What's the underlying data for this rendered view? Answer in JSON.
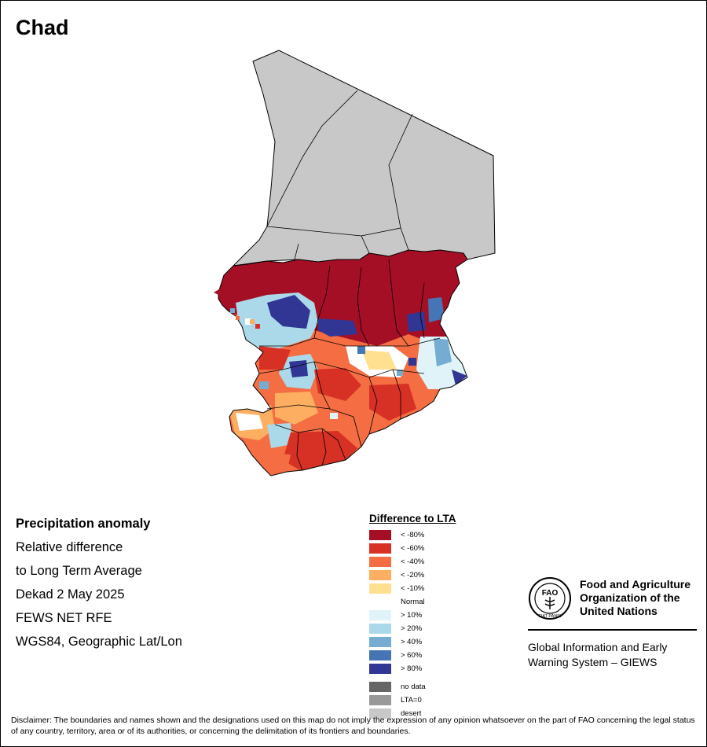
{
  "title": "Chad",
  "info_lines": [
    "Precipitation anomaly",
    "Relative difference",
    "to Long Term Average",
    "Dekad 2 May 2025",
    "FEWS NET RFE",
    "WGS84, Geographic Lat/Lon"
  ],
  "legend": {
    "title": "Difference to LTA",
    "classes": [
      {
        "label": "< -80%",
        "color": "#a50f26"
      },
      {
        "label": "< -60%",
        "color": "#d73024"
      },
      {
        "label": "< -40%",
        "color": "#f46d43"
      },
      {
        "label": "< -20%",
        "color": "#fdae61"
      },
      {
        "label": "< -10%",
        "color": "#fee090"
      },
      {
        "label": "Normal",
        "color": "#ffffff"
      },
      {
        "label": "> 10%",
        "color": "#e0f3f8"
      },
      {
        "label": "> 20%",
        "color": "#abd9e9"
      },
      {
        "label": "> 40%",
        "color": "#74add1"
      },
      {
        "label": "> 60%",
        "color": "#4575b4"
      },
      {
        "label": "> 80%",
        "color": "#313695"
      }
    ],
    "other": [
      {
        "label": "no data",
        "color": "#666666"
      },
      {
        "label": "LTA=0",
        "color": "#999999"
      },
      {
        "label": "desert",
        "color": "#c8c8c8"
      }
    ]
  },
  "fao": {
    "org_name": "Food and Agriculture Organization of the United Nations",
    "system_name": "Global Information and Early Warning System – GIEWS",
    "logo_text": "FAO",
    "logo_motto": "FIAT PANIS"
  },
  "disclaimer": "Disclaimer: The boundaries and names shown and the designations used on this map do not imply the expression of any opinion whatsoever on the part of FAO concerning the legal status of any country, territory, area or of its authorities, or concerning the delimitation of its frontiers and boundaries."
}
